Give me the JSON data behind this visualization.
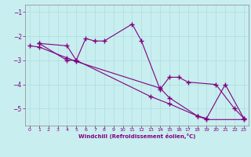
{
  "title": "",
  "xlabel": "Windchill (Refroidissement éolien,°C)",
  "bg_color": "#c8eef0",
  "line_color": "#800080",
  "grid_color": "#aadddd",
  "x_ticks": [
    0,
    1,
    2,
    3,
    4,
    5,
    6,
    7,
    8,
    9,
    10,
    11,
    12,
    13,
    14,
    15,
    16,
    17,
    18,
    19,
    20,
    21,
    22,
    23
  ],
  "y_ticks": [
    -1,
    -2,
    -3,
    -4,
    -5
  ],
  "xlim": [
    -0.5,
    23.5
  ],
  "ylim": [
    -5.7,
    -0.7
  ],
  "line1_x": [
    1,
    4,
    5,
    6,
    7,
    8,
    11,
    12,
    14,
    15,
    16,
    17,
    20,
    22,
    23
  ],
  "line1_y": [
    -2.3,
    -2.4,
    -3.0,
    -2.1,
    -2.2,
    -2.2,
    -1.5,
    -2.2,
    -4.2,
    -3.7,
    -3.7,
    -3.9,
    -4.0,
    -5.0,
    -5.4
  ],
  "line2_x": [
    1,
    4,
    5,
    13,
    15,
    18,
    19,
    21,
    23
  ],
  "line2_y": [
    -2.3,
    -3.0,
    -3.0,
    -4.5,
    -4.8,
    -5.3,
    -5.4,
    -4.0,
    -5.4
  ],
  "line3_x": [
    0,
    1,
    4,
    5,
    14,
    15,
    18,
    19,
    23
  ],
  "line3_y": [
    -2.4,
    -2.45,
    -2.9,
    -3.05,
    -4.15,
    -4.55,
    -5.3,
    -5.45,
    -5.45
  ]
}
